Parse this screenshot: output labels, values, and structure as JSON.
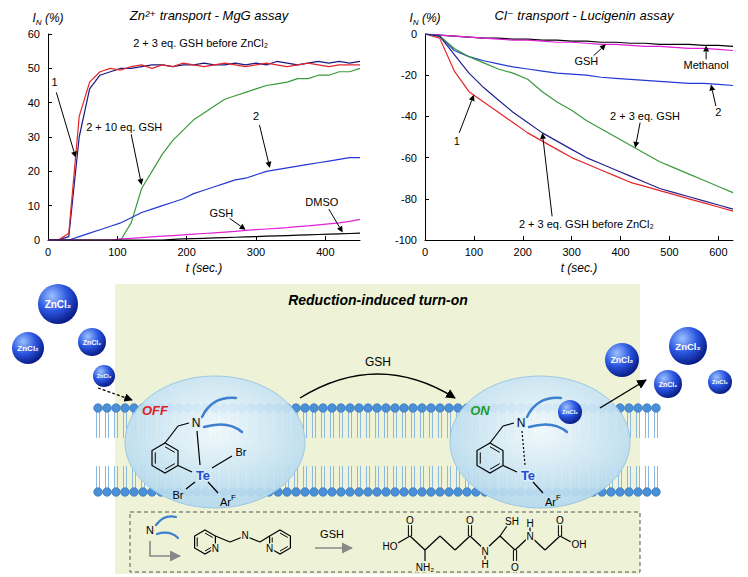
{
  "chart_data": [
    {
      "type": "line",
      "title": "Zn²⁺ transport - MgG assay",
      "y_label": {
        "text": "I",
        "sub": "N",
        "after": " (%)"
      },
      "x_label": "t (sec.)",
      "xlim": [
        0,
        450
      ],
      "xticks": [
        0,
        100,
        200,
        300,
        400
      ],
      "ylim": [
        0,
        60
      ],
      "yticks": [
        0,
        10,
        20,
        30,
        40,
        50,
        60
      ],
      "grid": false,
      "x": [
        0,
        15,
        30,
        45,
        60,
        75,
        90,
        105,
        120,
        135,
        150,
        165,
        180,
        195,
        210,
        225,
        240,
        255,
        270,
        285,
        300,
        315,
        330,
        345,
        360,
        375,
        390,
        405,
        420,
        435,
        450
      ],
      "series": [
        {
          "name": "1",
          "color": "#1a1a80",
          "values": [
            0,
            0,
            1,
            30,
            44,
            48,
            49,
            50,
            50,
            50.5,
            51,
            51,
            50.5,
            51,
            51,
            51.5,
            51,
            51,
            51.5,
            51,
            51.5,
            51,
            52,
            51.5,
            51,
            51.5,
            52,
            51.5,
            52,
            51.5,
            52
          ]
        },
        {
          "name": "2 + 3 eq. GSH before ZnCl₂",
          "color": "#e3262b",
          "values": [
            0,
            0,
            2,
            36,
            46,
            49,
            50,
            49.5,
            50.5,
            51,
            50,
            51,
            50.5,
            51.5,
            51,
            50.5,
            51,
            51.5,
            51,
            50.5,
            51,
            51.5,
            51,
            50.5,
            51,
            51.5,
            51,
            50.5,
            51,
            51,
            51
          ]
        },
        {
          "name": "2 + 10 eq. GSH",
          "color": "#3b9a3b",
          "values": [
            0,
            0,
            0,
            0,
            0,
            0,
            0,
            0,
            5,
            15,
            20,
            25,
            29,
            32,
            35,
            37,
            39,
            41,
            42,
            43,
            44,
            45,
            45.5,
            46,
            47,
            47,
            48,
            48,
            49,
            49,
            50
          ]
        },
        {
          "name": "2",
          "color": "#2339d6",
          "values": [
            0,
            0,
            0,
            1,
            2,
            3,
            4,
            5,
            6.5,
            8,
            9,
            10,
            11,
            12,
            13.5,
            14.5,
            15.5,
            16.5,
            17.5,
            18,
            19,
            20,
            20.5,
            21,
            21.5,
            22,
            22.5,
            23,
            23.5,
            24,
            24
          ]
        },
        {
          "name": "GSH",
          "color": "#e020d8",
          "values": [
            0,
            0,
            0,
            0,
            0,
            0,
            0,
            0.3,
            0.5,
            0.7,
            0.9,
            1.1,
            1.3,
            1.5,
            1.7,
            1.9,
            2.1,
            2.3,
            2.5,
            2.8,
            3,
            3.2,
            3.4,
            3.6,
            3.9,
            4.1,
            4.4,
            4.7,
            5,
            5.4,
            6
          ]
        },
        {
          "name": "DMSO",
          "color": "#000000",
          "values": [
            0,
            0,
            0,
            0,
            0,
            0,
            0,
            0,
            0,
            0,
            0,
            0,
            0.2,
            0.3,
            0.4,
            0.5,
            0.6,
            0.7,
            0.8,
            0.9,
            1,
            1.1,
            1.2,
            1.3,
            1.4,
            1.5,
            1.6,
            1.7,
            1.8,
            1.9,
            2
          ]
        }
      ]
    },
    {
      "type": "line",
      "title": "Cl⁻ transport - Lucigenin assay",
      "y_label": {
        "text": "I",
        "sub": "N",
        "after": " (%)"
      },
      "x_label": "t (sec.)",
      "xlim": [
        0,
        630
      ],
      "xticks": [
        0,
        100,
        200,
        300,
        400,
        500,
        600
      ],
      "ylim": [
        -100,
        0
      ],
      "yticks": [
        -100,
        -80,
        -60,
        -40,
        -20,
        0
      ],
      "grid": false,
      "x": [
        0,
        30,
        60,
        90,
        120,
        150,
        180,
        210,
        240,
        270,
        300,
        330,
        360,
        390,
        420,
        450,
        480,
        510,
        540,
        570,
        600,
        630
      ],
      "series": [
        {
          "name": "Methanol",
          "color": "#000000",
          "values": [
            0,
            -0.5,
            -1,
            -1.5,
            -2,
            -2,
            -2.5,
            -2.5,
            -3,
            -3,
            -3.5,
            -3.5,
            -4,
            -4,
            -4.5,
            -4.5,
            -5,
            -5,
            -5,
            -5.5,
            -5.5,
            -6
          ]
        },
        {
          "name": "GSH",
          "color": "#e020d8",
          "values": [
            0,
            -0.5,
            -1,
            -1.5,
            -2,
            -2.5,
            -3,
            -3,
            -3.5,
            -4,
            -4,
            -4.5,
            -5,
            -5,
            -5.5,
            -6,
            -6,
            -6.5,
            -7,
            -7,
            -7.5,
            -8
          ]
        },
        {
          "name": "2",
          "color": "#2339d6",
          "values": [
            0,
            -1,
            -8,
            -11,
            -13,
            -14.5,
            -16,
            -17,
            -18,
            -19,
            -19.5,
            -20,
            -21,
            -21.5,
            -22,
            -22.5,
            -23,
            -23.5,
            -24,
            -24,
            -24.5,
            -25
          ]
        },
        {
          "name": "1",
          "color": "#e3262b",
          "values": [
            0,
            -2,
            -18,
            -28,
            -33,
            -38,
            -43,
            -48,
            -52,
            -56,
            -60,
            -63,
            -66,
            -69,
            -72,
            -74,
            -76,
            -78,
            -80,
            -82,
            -84,
            -86
          ]
        },
        {
          "name": "2 + 3 eq. GSH",
          "color": "#3b9a3b",
          "values": [
            0,
            -1,
            -7,
            -11,
            -14,
            -17,
            -19,
            -22,
            -28,
            -33,
            -37,
            -42,
            -46,
            -50,
            -54,
            -58,
            -62,
            -65,
            -68,
            -71,
            -74,
            -77
          ]
        },
        {
          "name": "2 + 3 eq. GSH before ZnCl₂",
          "color": "#23238f",
          "values": [
            0,
            -1,
            -10,
            -19,
            -26,
            -32,
            -38,
            -43,
            -48,
            -52,
            -56,
            -60,
            -63,
            -66,
            -69,
            -72,
            -75,
            -77,
            -79,
            -81,
            -83,
            -85
          ]
        }
      ]
    }
  ],
  "scheme": {
    "title": "Reduction-induced turn-on",
    "off_label": "OFF",
    "on_label": "ON",
    "reductant": "GSH",
    "zinc": "ZnCl₂",
    "complex": {
      "ligand_atom": "N",
      "metal_atom": "Te",
      "halide": "Br",
      "aryl": {
        "text": "Ar",
        "sup": "F"
      }
    },
    "key": {
      "ligand_symbol": "N",
      "ligand_atoms": [
        "N",
        "N",
        "N"
      ],
      "reductant": "GSH",
      "reductant_atoms": [
        "HO",
        "O",
        "NH₂",
        "O",
        "N",
        "H",
        "SH",
        "O",
        "N",
        "H",
        "O",
        "OH"
      ]
    }
  }
}
